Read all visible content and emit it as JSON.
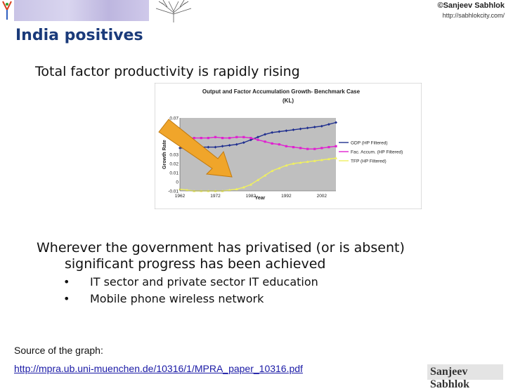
{
  "header": {
    "copyright": "©Sanjeev Sabhlok",
    "website": "http://sabhlokcity.com/"
  },
  "slide": {
    "title": "India positives",
    "subtitle": "Total factor productivity is rapidly rising",
    "paragraph_line1": "Wherever the government has privatised (or is absent)",
    "paragraph_line2": "significant progress has been achieved",
    "bullets": [
      "IT sector and private sector IT education",
      "Mobile phone wireless network"
    ],
    "source_label": "Source of the graph:",
    "source_link": "http://mpra.ub.uni-muenchen.de/10316/1/MPRA_paper_10316.pdf",
    "signature": "Sanjeev Sabhlok"
  },
  "colors": {
    "title": "#1a3a7a",
    "gdp": "#1f2f8f",
    "fac": "#e020d0",
    "tfp": "#f0f060",
    "arrow": "#f0a52a"
  },
  "chart_data": {
    "type": "line",
    "title": "Output and Factor Accumulation Growth- Benchmark Case",
    "subtitle": "(KL)",
    "xlabel": "Year",
    "ylabel": "Growth Rate",
    "xlim": [
      1962,
      2006
    ],
    "ylim": [
      -0.01,
      0.07
    ],
    "x_ticks": [
      1962,
      1972,
      1982,
      1992,
      2002
    ],
    "y_ticks": [
      -0.01,
      0,
      0.01,
      0.02,
      0.03,
      0.04,
      0.05,
      0.06,
      0.07
    ],
    "y_tick_labels": [
      "-0.01",
      "0",
      "0.01",
      "0.02",
      "0.03",
      "",
      "",
      "",
      "0.07"
    ],
    "legend_position": "right",
    "series": [
      {
        "name": "GDP (HP Filtered)",
        "x": [
          1962,
          1964,
          1966,
          1968,
          1970,
          1972,
          1974,
          1976,
          1978,
          1980,
          1982,
          1984,
          1986,
          1988,
          1990,
          1992,
          1994,
          1996,
          1998,
          2000,
          2002,
          2004,
          2006
        ],
        "y": [
          0.037,
          0.037,
          0.038,
          0.038,
          0.038,
          0.038,
          0.039,
          0.04,
          0.041,
          0.043,
          0.046,
          0.049,
          0.052,
          0.054,
          0.055,
          0.056,
          0.057,
          0.058,
          0.059,
          0.06,
          0.061,
          0.063,
          0.065
        ]
      },
      {
        "name": "Fac. Accum. (HP Filtered)",
        "x": [
          1962,
          1964,
          1966,
          1968,
          1970,
          1972,
          1974,
          1976,
          1978,
          1980,
          1982,
          1984,
          1986,
          1988,
          1990,
          1992,
          1994,
          1996,
          1998,
          2000,
          2002,
          2004,
          2006
        ],
        "y": [
          0.046,
          0.047,
          0.048,
          0.048,
          0.048,
          0.049,
          0.048,
          0.048,
          0.049,
          0.049,
          0.048,
          0.046,
          0.044,
          0.042,
          0.041,
          0.039,
          0.038,
          0.037,
          0.036,
          0.036,
          0.037,
          0.038,
          0.039
        ]
      },
      {
        "name": "TFP (HP Filtered)",
        "x": [
          1962,
          1964,
          1966,
          1968,
          1970,
          1972,
          1974,
          1976,
          1978,
          1980,
          1982,
          1984,
          1986,
          1988,
          1990,
          1992,
          1994,
          1996,
          1998,
          2000,
          2002,
          2004,
          2006
        ],
        "y": [
          -0.008,
          -0.009,
          -0.01,
          -0.01,
          -0.01,
          -0.01,
          -0.01,
          -0.009,
          -0.008,
          -0.006,
          -0.003,
          0.002,
          0.007,
          0.012,
          0.015,
          0.018,
          0.02,
          0.021,
          0.022,
          0.023,
          0.024,
          0.025,
          0.026
        ]
      }
    ]
  }
}
